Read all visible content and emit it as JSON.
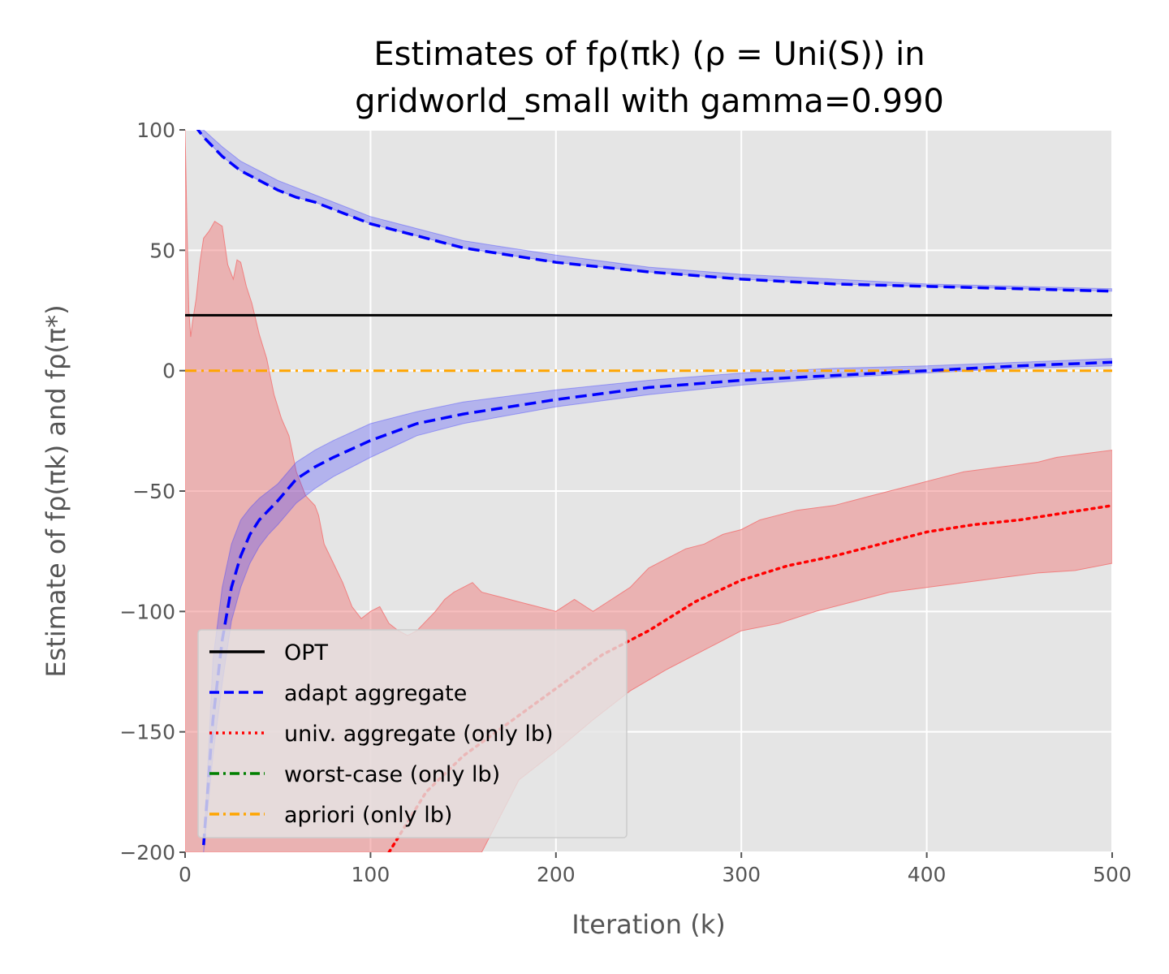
{
  "chart_data": {
    "type": "line",
    "title_line1": "Estimates of fρ(πk) (ρ = Uni(S)) in",
    "title_line2": "gridworld_small with gamma=0.990",
    "xlabel": "Iteration (k)",
    "ylabel": "Estimate of fρ(πk) and fρ(π*)",
    "xlim": [
      0,
      500
    ],
    "ylim": [
      -200,
      100
    ],
    "x_ticks": [
      0,
      100,
      200,
      300,
      400,
      500
    ],
    "y_ticks": [
      -200,
      -150,
      -100,
      -50,
      0,
      50,
      100
    ],
    "y_tick_labels": [
      "−200",
      "−150",
      "−100",
      "−50",
      "0",
      "50",
      "100"
    ],
    "grid": true,
    "legend_position": "lower-left",
    "background": "#e5e5e5",
    "series": [
      {
        "name": "OPT",
        "color": "#000000",
        "style": "solid",
        "x": [
          0,
          500
        ],
        "y": [
          23,
          23
        ]
      },
      {
        "name": "adapt aggregate",
        "color": "#0000ff",
        "style": "dashed",
        "band_color": "#4040ff",
        "upper": {
          "x": [
            5,
            10,
            20,
            30,
            40,
            50,
            60,
            70,
            80,
            100,
            125,
            150,
            200,
            250,
            300,
            350,
            400,
            450,
            500
          ],
          "y": [
            102,
            97,
            89,
            83,
            79,
            75,
            72,
            70,
            67,
            61,
            56,
            51,
            45,
            41,
            38,
            36,
            35,
            34,
            33
          ]
        },
        "lower": {
          "x": [
            10,
            15,
            20,
            25,
            30,
            35,
            40,
            45,
            50,
            60,
            70,
            80,
            100,
            125,
            150,
            200,
            250,
            300,
            350,
            400,
            450,
            500
          ],
          "y": [
            -197,
            -145,
            -112,
            -90,
            -77,
            -68,
            -62,
            -58,
            -54,
            -45,
            -40,
            -36,
            -29,
            -22,
            -18,
            -12,
            -7,
            -4,
            -2,
            0,
            2,
            3.5
          ]
        },
        "band_upper_x": [
          5,
          10,
          20,
          30,
          40,
          50,
          60,
          70,
          80,
          100,
          125,
          150,
          200,
          250,
          300,
          350,
          400,
          450,
          500
        ],
        "band_upper_y": [
          104,
          100,
          93,
          87,
          83,
          79,
          76,
          73,
          70,
          64,
          59,
          54,
          48,
          43,
          40,
          38,
          36,
          35,
          34
        ],
        "band_lower_outer_x": [
          10,
          15,
          20,
          25,
          30,
          35,
          40,
          45,
          50,
          60,
          70,
          80,
          100,
          125,
          150,
          200,
          250,
          300,
          350,
          400,
          450,
          500
        ],
        "band_lower_outer_y": [
          -200,
          -160,
          -130,
          -104,
          -90,
          -80,
          -73,
          -68,
          -64,
          -55,
          -49,
          -44,
          -36,
          -27,
          -22,
          -15,
          -10,
          -6,
          -3,
          -1,
          1,
          2
        ],
        "band_lower_inner_y": [
          -200,
          -120,
          -90,
          -72,
          -62,
          -57,
          -53,
          -50,
          -47,
          -38,
          -33,
          -29,
          -22,
          -17,
          -13,
          -8,
          -4,
          -1,
          1,
          2,
          3.5,
          5
        ]
      },
      {
        "name": "univ. aggregate (only lb)",
        "color": "#ff0000",
        "style": "dotted",
        "band_color": "#f08080",
        "x": [
          110,
          130,
          150,
          175,
          200,
          225,
          250,
          275,
          300,
          325,
          350,
          375,
          400,
          425,
          450,
          475,
          500
        ],
        "y": [
          -200,
          -175,
          -160,
          -146,
          -132,
          -118,
          -108,
          -96,
          -87,
          -81,
          -77,
          -72,
          -67,
          -64,
          -62,
          -59,
          -56
        ],
        "band_top_x": [
          0,
          1,
          2,
          3,
          4,
          6,
          8,
          10,
          13,
          16,
          20,
          23,
          26,
          28,
          30,
          33,
          36,
          40,
          44,
          48,
          52,
          56,
          60,
          65,
          70,
          72,
          75,
          80,
          85,
          90,
          95,
          100,
          105,
          110,
          115,
          120,
          125,
          130,
          135,
          140,
          145,
          150,
          155,
          160,
          170,
          180,
          190,
          200,
          210,
          220,
          230,
          240,
          250,
          260,
          270,
          280,
          290,
          300,
          310,
          320,
          330,
          340,
          350,
          360,
          370,
          380,
          390,
          400,
          410,
          420,
          430,
          440,
          450,
          460,
          470,
          480,
          490,
          500
        ],
        "band_top_y": [
          100,
          60,
          25,
          14,
          20,
          30,
          45,
          55,
          58,
          62,
          60,
          44,
          38,
          46,
          45,
          35,
          28,
          15,
          5,
          -10,
          -20,
          -27,
          -42,
          -52,
          -56,
          -60,
          -72,
          -80,
          -88,
          -98,
          -103,
          -100,
          -98,
          -105,
          -108,
          -110,
          -108,
          -104,
          -100,
          -95,
          -92,
          -90,
          -88,
          -92,
          -94,
          -96,
          -98,
          -100,
          -95,
          -100,
          -95,
          -90,
          -82,
          -78,
          -74,
          -72,
          -68,
          -66,
          -62,
          -60,
          -58,
          -57,
          -56,
          -54,
          -52,
          -50,
          -48,
          -46,
          -44,
          -42,
          -41,
          -40,
          -39,
          -38,
          -36,
          -35,
          -34,
          -33
        ],
        "band_bottom_x": [
          0,
          100,
          120,
          140,
          160,
          180,
          200,
          220,
          240,
          260,
          280,
          300,
          320,
          340,
          360,
          380,
          400,
          420,
          440,
          460,
          480,
          500
        ],
        "band_bottom_y": [
          -200,
          -200,
          -200,
          -200,
          -200,
          -170,
          -158,
          -145,
          -133,
          -124,
          -116,
          -108,
          -105,
          -100,
          -96,
          -92,
          -90,
          -88,
          -86,
          -84,
          -83,
          -80
        ]
      },
      {
        "name": "worst-case (only lb)",
        "color": "#008000",
        "style": "dashdot"
      },
      {
        "name": "apriori (only lb)",
        "color": "#ffa500",
        "style": "dashdot",
        "x": [
          0,
          500
        ],
        "y": [
          0,
          0
        ]
      }
    ]
  }
}
